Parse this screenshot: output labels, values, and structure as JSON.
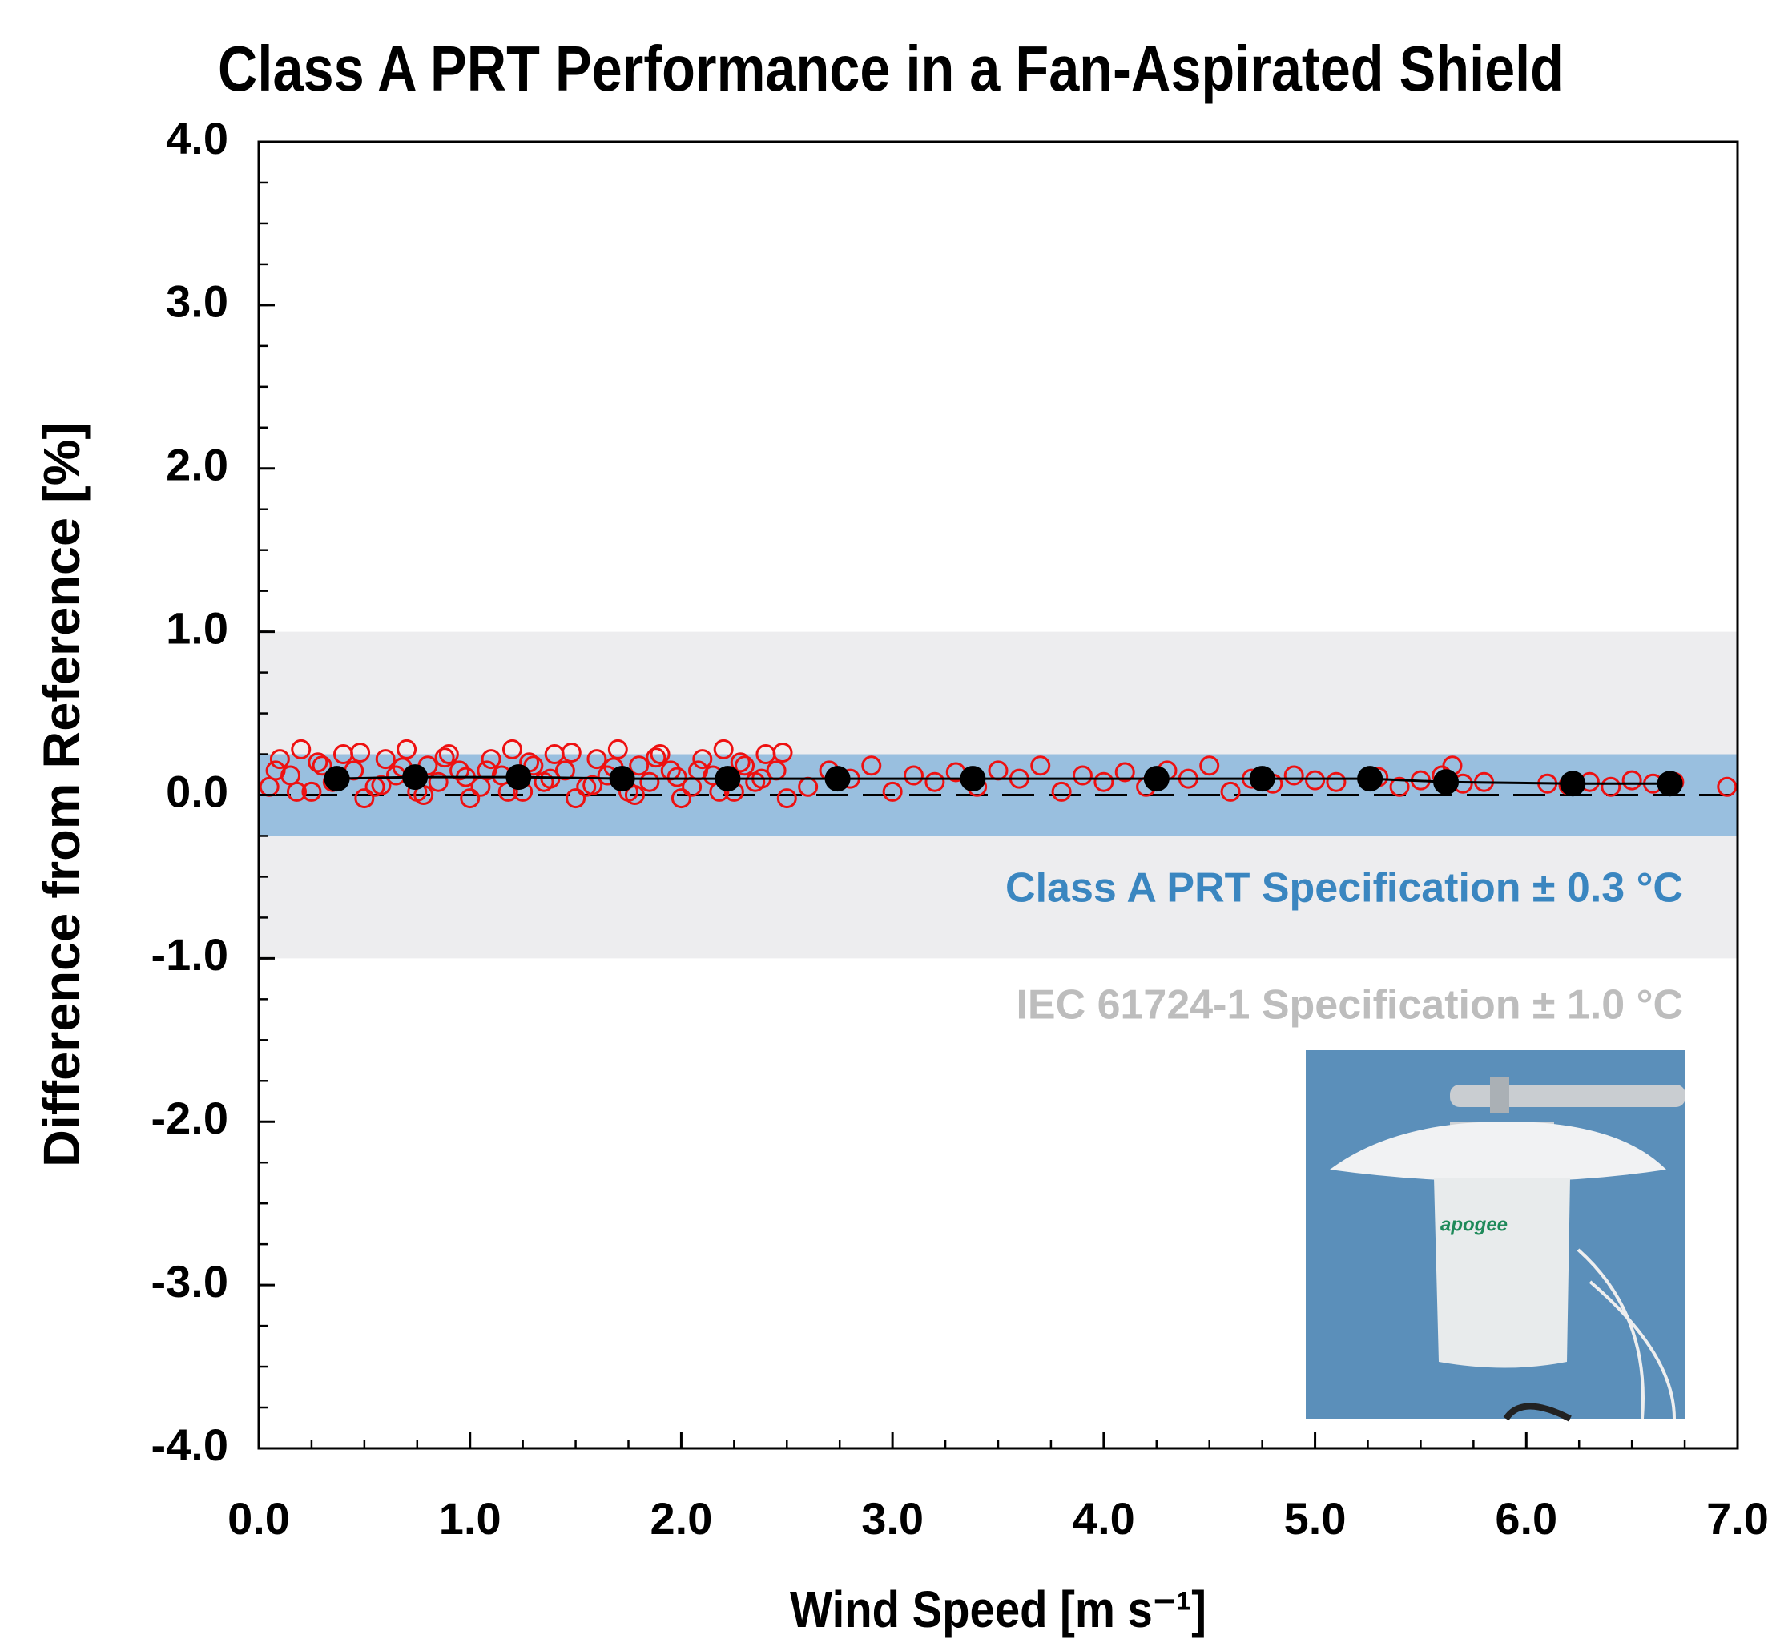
{
  "chart_data": {
    "type": "scatter",
    "title": "Class A PRT Performance in a Fan-Aspirated Shield",
    "xlabel": "Wind Speed [m s⁻¹]",
    "ylabel": "Difference from Reference [%]",
    "xlim": [
      0,
      7
    ],
    "ylim": [
      -4,
      4
    ],
    "xticks": [
      {
        "value": 0,
        "label": "0.0"
      },
      {
        "value": 1,
        "label": "1.0"
      },
      {
        "value": 2,
        "label": "2.0"
      },
      {
        "value": 3,
        "label": "3.0"
      },
      {
        "value": 4,
        "label": "4.0"
      },
      {
        "value": 5,
        "label": "5.0"
      },
      {
        "value": 6,
        "label": "6.0"
      },
      {
        "value": 7,
        "label": "7.0"
      }
    ],
    "yticks": [
      {
        "value": -4,
        "label": "-4.0"
      },
      {
        "value": -3,
        "label": "-3.0"
      },
      {
        "value": -2,
        "label": "-2.0"
      },
      {
        "value": -1,
        "label": "-1.0"
      },
      {
        "value": 0,
        "label": "0.0"
      },
      {
        "value": 1,
        "label": "1.0"
      },
      {
        "value": 2,
        "label": "2.0"
      },
      {
        "value": 3,
        "label": "3.0"
      },
      {
        "value": 4,
        "label": "4.0"
      }
    ],
    "minor_step": 0.25,
    "reference_line": 0,
    "bands": [
      {
        "range": [
          -1,
          1
        ],
        "color": "#ededef",
        "label": "IEC 61724-1 Specification ± 1.0 °C",
        "label_color": "#bdbdbd"
      },
      {
        "range": [
          -0.25,
          0.25
        ],
        "color": "#99bfdf",
        "label": "Class A PRT Specification ± 0.3 °C",
        "label_color": "#3a86c0"
      }
    ],
    "photo_label": "apogee",
    "series": [
      {
        "color": "#ee1111",
        "marker": "open",
        "x": [
          0.05,
          0.1,
          0.15,
          0.2,
          0.25,
          0.3,
          0.35,
          0.4,
          0.45,
          0.5,
          0.55,
          0.6,
          0.65,
          0.7,
          0.75,
          0.8,
          0.85,
          0.9,
          0.95,
          1.0,
          1.05,
          1.1,
          1.15,
          1.2,
          1.25,
          1.3,
          1.35,
          1.4,
          1.45,
          1.5,
          1.55,
          1.6,
          1.65,
          1.7,
          1.75,
          1.8,
          1.85,
          1.9,
          1.95,
          2.0,
          2.05,
          2.1,
          2.15,
          2.2,
          2.25,
          2.3,
          2.35,
          2.4,
          2.45,
          2.5,
          0.08,
          0.18,
          0.28,
          0.38,
          0.48,
          0.58,
          0.68,
          0.78,
          0.88,
          0.98,
          1.08,
          1.18,
          1.28,
          1.38,
          1.48,
          1.58,
          1.68,
          1.78,
          1.88,
          1.98,
          2.08,
          2.18,
          2.28,
          2.38,
          2.48,
          2.6,
          2.7,
          2.8,
          2.9,
          3.0,
          3.1,
          3.2,
          3.3,
          3.4,
          3.5,
          3.6,
          3.7,
          3.8,
          3.9,
          4.0,
          4.1,
          4.2,
          4.3,
          4.4,
          4.5,
          4.6,
          4.7,
          4.8,
          4.9,
          5.0,
          5.1,
          5.3,
          5.4,
          5.5,
          5.6,
          5.65,
          5.7,
          5.8,
          6.1,
          6.2,
          6.3,
          6.4,
          6.5,
          6.6,
          6.7,
          6.95
        ],
        "values": [
          0.05,
          0.22,
          0.12,
          0.28,
          0.02,
          0.18,
          0.08,
          0.25,
          0.15,
          -0.02,
          0.05,
          0.22,
          0.12,
          0.28,
          0.02,
          0.18,
          0.08,
          0.25,
          0.15,
          -0.02,
          0.05,
          0.22,
          0.12,
          0.28,
          0.02,
          0.18,
          0.08,
          0.25,
          0.15,
          -0.02,
          0.05,
          0.22,
          0.12,
          0.28,
          0.02,
          0.18,
          0.08,
          0.25,
          0.15,
          -0.02,
          0.05,
          0.22,
          0.12,
          0.28,
          0.02,
          0.18,
          0.08,
          0.25,
          0.15,
          -0.02,
          0.15,
          0.02,
          0.2,
          0.1,
          0.26,
          0.06,
          0.17,
          0.0,
          0.23,
          0.11,
          0.15,
          0.02,
          0.2,
          0.1,
          0.26,
          0.06,
          0.17,
          0.0,
          0.23,
          0.11,
          0.15,
          0.02,
          0.2,
          0.1,
          0.26,
          0.05,
          0.15,
          0.1,
          0.18,
          0.02,
          0.12,
          0.08,
          0.14,
          0.05,
          0.15,
          0.1,
          0.18,
          0.02,
          0.12,
          0.08,
          0.14,
          0.05,
          0.15,
          0.1,
          0.18,
          0.02,
          0.1,
          0.07,
          0.12,
          0.09,
          0.08,
          0.11,
          0.05,
          0.09,
          0.12,
          0.18,
          0.07,
          0.08,
          0.07,
          0.06,
          0.08,
          0.05,
          0.09,
          0.07,
          0.08,
          0.05
        ]
      },
      {
        "color": "#000000",
        "marker": "filled",
        "line": true,
        "x": [
          0.37,
          0.74,
          1.23,
          1.72,
          2.22,
          2.74,
          3.38,
          4.25,
          4.75,
          5.26,
          5.62,
          6.22,
          6.68
        ],
        "values": [
          0.1,
          0.11,
          0.11,
          0.1,
          0.1,
          0.1,
          0.1,
          0.1,
          0.1,
          0.1,
          0.08,
          0.07,
          0.07
        ]
      }
    ]
  }
}
